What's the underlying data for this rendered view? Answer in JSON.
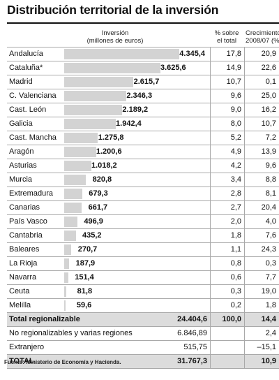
{
  "title": "Distribución territorial de la inversión",
  "headers": {
    "inversion": "Inversión",
    "inversion_unit": "(millones de euros)",
    "pct": "% sobre",
    "pct_sub": "el total",
    "crec": "Crecimiento",
    "crec_sub": "2008/07 (%"
  },
  "chart_data": {
    "type": "bar",
    "orientation": "horizontal",
    "categories": [
      "Andalucía",
      "Cataluña*",
      "Madrid",
      "C. Valenciana",
      "Cast. León",
      "Galicia",
      "Cast. Mancha",
      "Aragón",
      "Asturias",
      "Murcia",
      "Extremadura",
      "Canarias",
      "País Vasco",
      "Cantabria",
      "Baleares",
      "La Rioja",
      "Navarra",
      "Ceuta",
      "Melilla"
    ],
    "values": [
      4345.4,
      3625.6,
      2615.7,
      2346.3,
      2189.2,
      1942.4,
      1275.8,
      1200.6,
      1018.2,
      820.8,
      679.3,
      661.7,
      496.9,
      435.2,
      270.7,
      187.9,
      151.4,
      81.8,
      59.6
    ],
    "rows": [
      {
        "name": "Andalucía",
        "value": 4345.4,
        "inv": "4.345,4",
        "pct": "17,8",
        "crec": "20,9"
      },
      {
        "name": "Cataluña*",
        "value": 3625.6,
        "inv": "3.625,6",
        "pct": "14,9",
        "crec": "22,6"
      },
      {
        "name": "Madrid",
        "value": 2615.7,
        "inv": "2.615,7",
        "pct": "10,7",
        "crec": "0,1"
      },
      {
        "name": "C. Valenciana",
        "value": 2346.3,
        "inv": "2.346,3",
        "pct": "9,6",
        "crec": "25,0"
      },
      {
        "name": "Cast. León",
        "value": 2189.2,
        "inv": "2.189,2",
        "pct": "9,0",
        "crec": "16,2"
      },
      {
        "name": "Galicia",
        "value": 1942.4,
        "inv": "1.942,4",
        "pct": "8,0",
        "crec": "10,7"
      },
      {
        "name": "Cast. Mancha",
        "value": 1275.8,
        "inv": "1.275,8",
        "pct": "5,2",
        "crec": "7,2"
      },
      {
        "name": "Aragón",
        "value": 1200.6,
        "inv": "1.200,6",
        "pct": "4,9",
        "crec": "13,9"
      },
      {
        "name": "Asturias",
        "value": 1018.2,
        "inv": "1.018,2",
        "pct": "4,2",
        "crec": "9,6"
      },
      {
        "name": "Murcia",
        "value": 820.8,
        "inv": "820,8",
        "pct": "3,4",
        "crec": "8,8"
      },
      {
        "name": "Extremadura",
        "value": 679.3,
        "inv": "679,3",
        "pct": "2,8",
        "crec": "8,1"
      },
      {
        "name": "Canarias",
        "value": 661.7,
        "inv": "661,7",
        "pct": "2,7",
        "crec": "20,4"
      },
      {
        "name": "País Vasco",
        "value": 496.9,
        "inv": "496,9",
        "pct": "2,0",
        "crec": "4,0"
      },
      {
        "name": "Cantabria",
        "value": 435.2,
        "inv": "435,2",
        "pct": "1,8",
        "crec": "7,6"
      },
      {
        "name": "Baleares",
        "value": 270.7,
        "inv": "270,7",
        "pct": "1,1",
        "crec": "24,3"
      },
      {
        "name": "La Rioja",
        "value": 187.9,
        "inv": "187,9",
        "pct": "0,8",
        "crec": "0,3"
      },
      {
        "name": "Navarra",
        "value": 151.4,
        "inv": "151,4",
        "pct": "0,6",
        "crec": "7,7"
      },
      {
        "name": "Ceuta",
        "value": 81.8,
        "inv": "81,8",
        "pct": "0,3",
        "crec": "19,0"
      },
      {
        "name": "Melilla",
        "value": 59.6,
        "inv": "59,6",
        "pct": "0,2",
        "crec": "1,8"
      }
    ],
    "summary": [
      {
        "name": "Total regionalizable",
        "inv": "24.404,6",
        "pct": "100,0",
        "crec": "14,4",
        "style": "bold-shaded"
      },
      {
        "name": "No regionalizables y varias regiones",
        "inv": "6.846,89",
        "pct": "",
        "crec": "2,4",
        "style": "plain"
      },
      {
        "name": "Extranjero",
        "inv": "515,75",
        "pct": "",
        "crec": "–15,1",
        "style": "plain"
      },
      {
        "name": "TOTAL",
        "inv": "31.767,3",
        "pct": "",
        "crec": "10,9",
        "style": "bold-shaded"
      }
    ],
    "colors": {
      "bar": "#d3d3d3",
      "shade": "#dcdcdc"
    }
  },
  "source": "Fuente: Ministerio de Economía y Hacienda."
}
